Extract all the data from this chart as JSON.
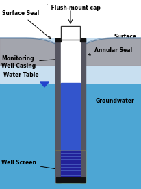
{
  "bg_above": "#FFFFFF",
  "bg_below": "#4DA6D4",
  "surface_wave_color": "#A0A0A8",
  "surface_wave_edge": "#6080A0",
  "casing_color": "#555560",
  "inner_white": "#FFFFFF",
  "water_color": "#3355CC",
  "well_screen_border": "#FFD700",
  "well_screen_inner": "#222299",
  "cap_facecolor": "#FFFFFF",
  "cap_edgecolor": "#333333",
  "black": "#111111",
  "wt_triangle": "#2244CC",
  "labels": {
    "surface_seal": "Surface Seal",
    "flush_mount_cap": "` Flush-mount cap",
    "surface": "Surface",
    "monitoring_well_casing": "Monitoring\nWell Casing",
    "annular_seal": "Annular Seal",
    "water_table": "Water Table",
    "groundwater": "Groundwater",
    "well_screen": "Well Screen"
  },
  "figsize": [
    2.06,
    2.76
  ],
  "dpi": 100
}
